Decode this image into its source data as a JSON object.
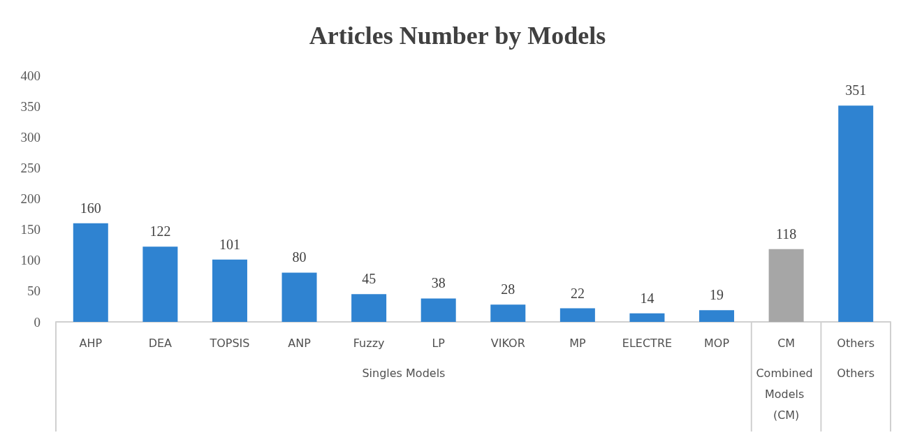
{
  "chart_data": {
    "type": "bar",
    "title": "Articles Number by Models",
    "categories": [
      "AHP",
      "DEA",
      "TOPSIS",
      "ANP",
      "Fuzzy",
      "LP",
      "VIKOR",
      "MP",
      "ELECTRE",
      "MOP",
      "CM",
      "Others"
    ],
    "values": [
      160,
      122,
      101,
      80,
      45,
      38,
      28,
      22,
      14,
      19,
      118,
      351
    ],
    "colors": [
      "#2f83d1",
      "#2f83d1",
      "#2f83d1",
      "#2f83d1",
      "#2f83d1",
      "#2f83d1",
      "#2f83d1",
      "#2f83d1",
      "#2f83d1",
      "#2f83d1",
      "#a6a6a6",
      "#2f83d1"
    ],
    "ylim": [
      0,
      400
    ],
    "yticks": [
      0,
      50,
      100,
      150,
      200,
      250,
      300,
      350,
      400
    ],
    "grid": false,
    "data_labels": true,
    "annotations": [
      "Singles Models",
      "Combined Models (CM)",
      "Others"
    ]
  }
}
